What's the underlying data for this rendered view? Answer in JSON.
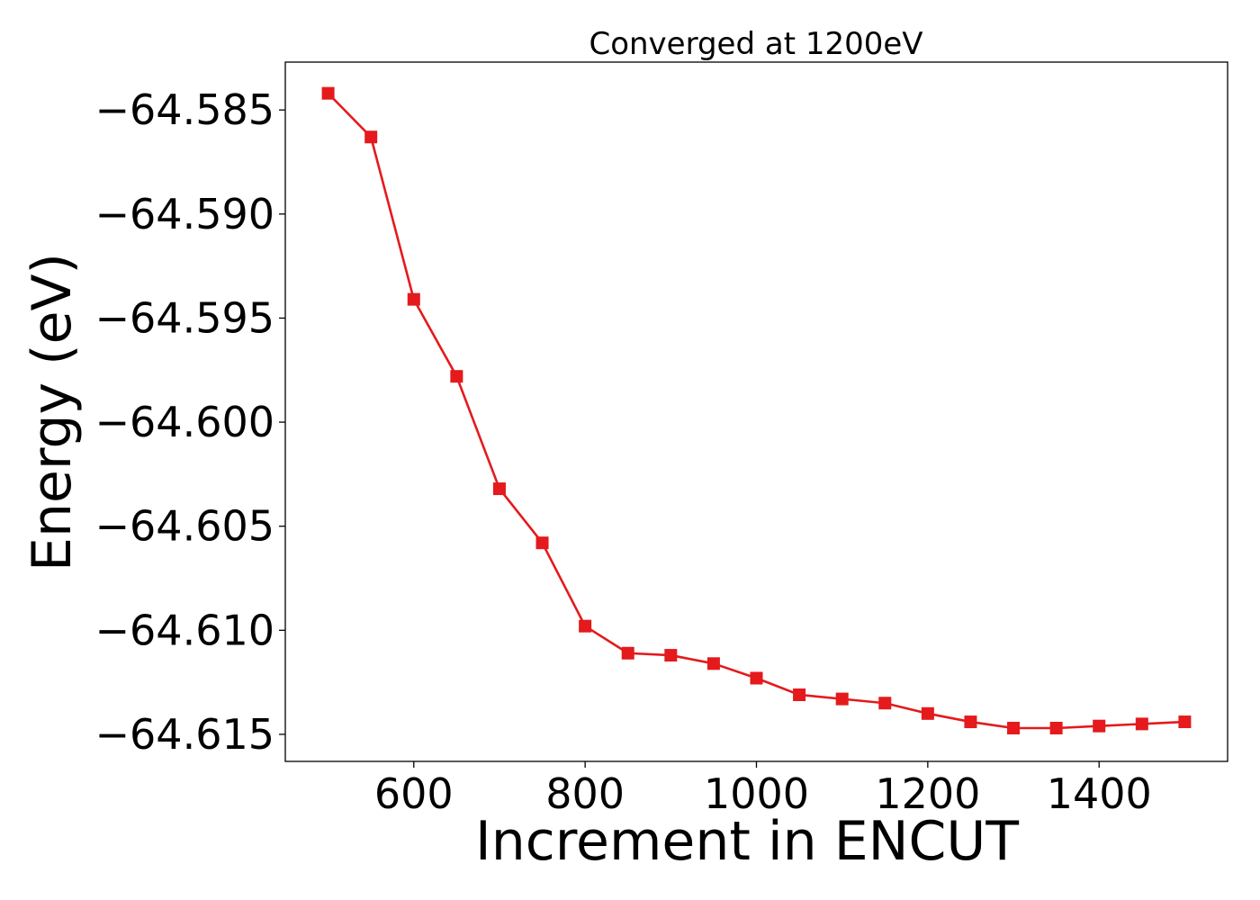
{
  "chart_data": {
    "type": "line",
    "title": "Converged at 1200eV",
    "xlabel": "Increment in ENCUT",
    "ylabel": "Energy (eV)",
    "xlim": [
      450,
      1550
    ],
    "ylim": [
      -64.6163,
      -64.5827
    ],
    "x_ticks": [
      600,
      800,
      1000,
      1200,
      1400
    ],
    "x_tick_labels": [
      "600",
      "800",
      "1000",
      "1200",
      "1400"
    ],
    "y_ticks": [
      -64.585,
      -64.59,
      -64.595,
      -64.6,
      -64.605,
      -64.61,
      -64.615
    ],
    "y_tick_labels": [
      "−64.585",
      "−64.590",
      "−64.595",
      "−64.600",
      "−64.605",
      "−64.610",
      "−64.615"
    ],
    "grid": false,
    "legend": false,
    "series": [
      {
        "color": "#e41a1c",
        "marker": "square",
        "x": [
          500,
          550,
          600,
          650,
          700,
          750,
          800,
          850,
          900,
          950,
          1000,
          1050,
          1100,
          1150,
          1200,
          1250,
          1300,
          1350,
          1400,
          1450,
          1500
        ],
        "y": [
          -64.5842,
          -64.5863,
          -64.5941,
          -64.5978,
          -64.6032,
          -64.6058,
          -64.6098,
          -64.6111,
          -64.6112,
          -64.6116,
          -64.6123,
          -64.6131,
          -64.6133,
          -64.6135,
          -64.614,
          -64.6144,
          -64.6147,
          -64.6147,
          -64.6146,
          -64.6145,
          -64.6144
        ]
      }
    ]
  }
}
